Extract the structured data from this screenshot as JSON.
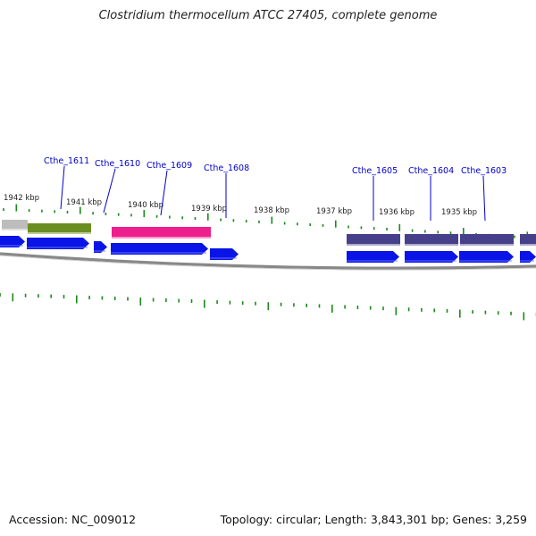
{
  "title": "Clostridium thermocellum ATCC 27405, complete genome",
  "footer": {
    "accession": "Accession: NC_009012",
    "summary": "Topology: circular; Length: 3,843,301 bp; Genes: 3,259"
  },
  "colors": {
    "tick": "#1a8a1a",
    "gene_arrow": "#0a14e6",
    "gene_label": "#0000cc",
    "backbone": "#888888",
    "block_gray": "#bdbdbd",
    "block_olive": "#6b8e23",
    "block_pink": "#ee1e8c",
    "block_purple": "#46408a"
  },
  "scale_labels": [
    {
      "text": "1942 kbp"
    },
    {
      "text": "1941 kbp"
    },
    {
      "text": "1940 kbp"
    },
    {
      "text": "1939 kbp"
    },
    {
      "text": "1938 kbp"
    },
    {
      "text": "1937 kbp"
    },
    {
      "text": "1936 kbp"
    },
    {
      "text": "1935 kbp"
    }
  ],
  "gene_labels": [
    {
      "text": "Cthe_1611"
    },
    {
      "text": "Cthe_1610"
    },
    {
      "text": "Cthe_1609"
    },
    {
      "text": "Cthe_1608"
    },
    {
      "text": "Cthe_1605"
    },
    {
      "text": "Cthe_1604"
    },
    {
      "text": "Cthe_1603"
    }
  ]
}
